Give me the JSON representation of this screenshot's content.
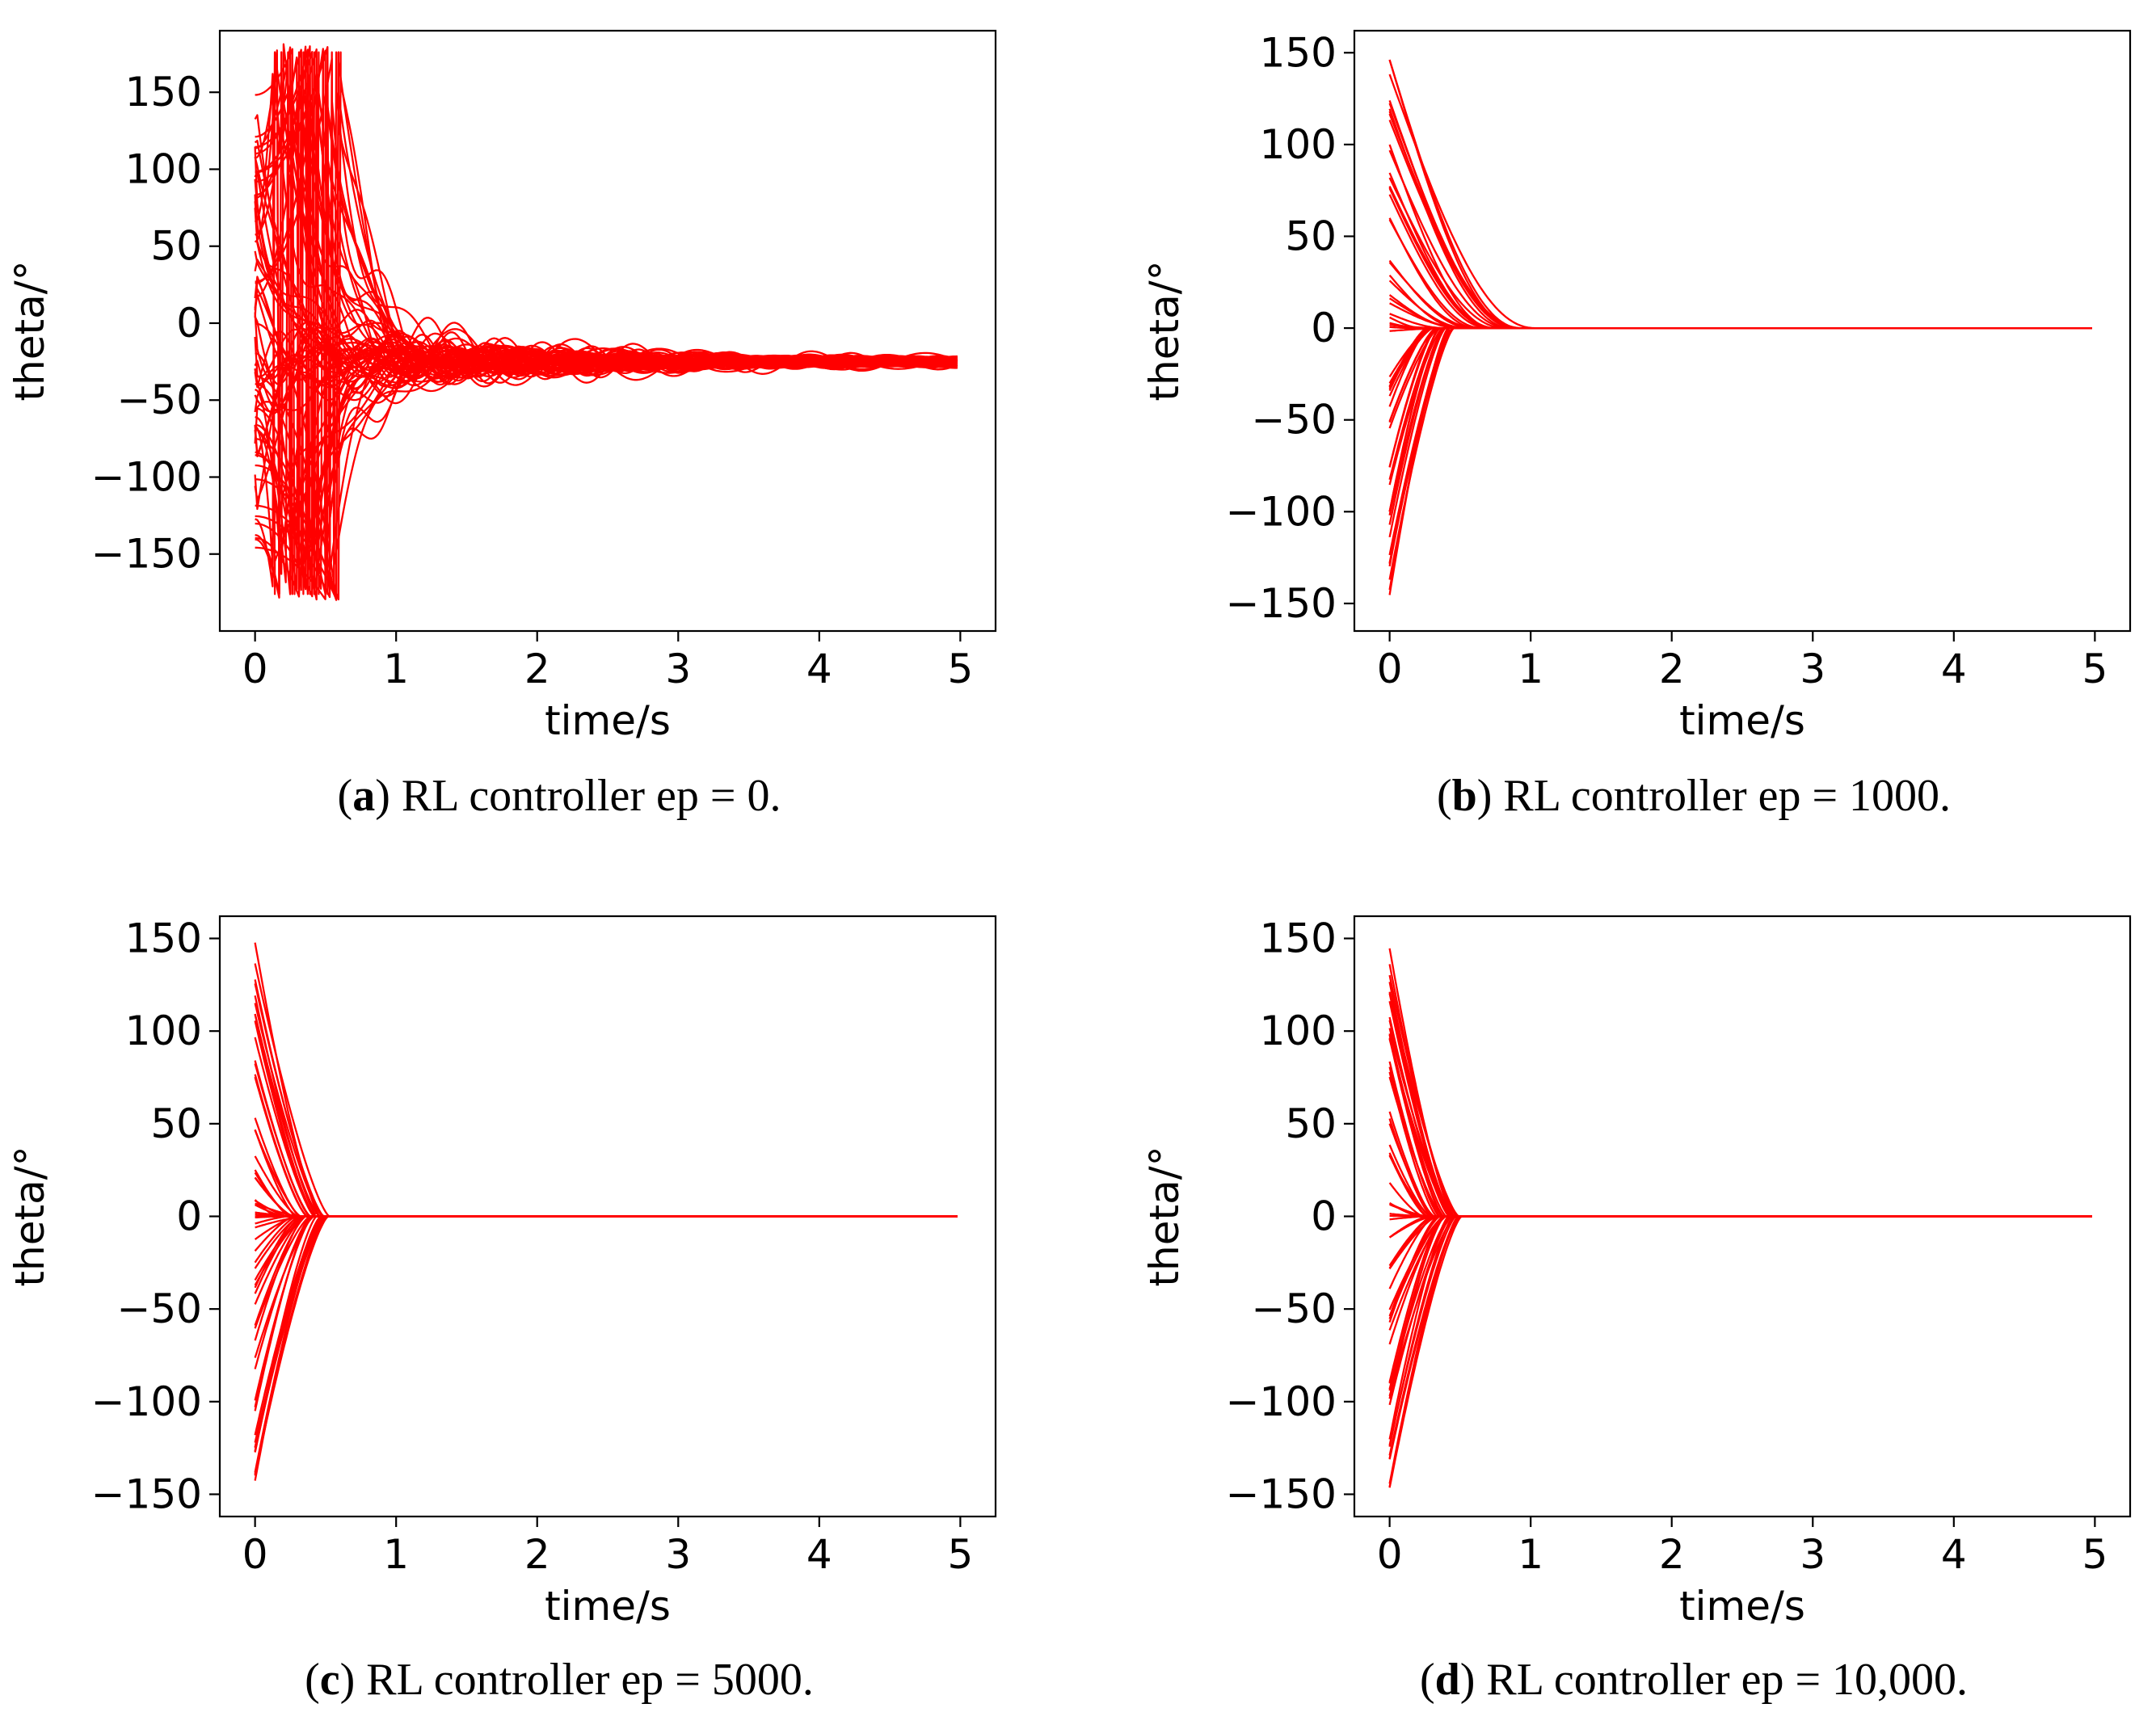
{
  "colors": {
    "series": "#ff0000",
    "axes": "#000000",
    "background": "#ffffff"
  },
  "chart_data": [
    {
      "id": "a",
      "type": "line",
      "caption_letter": "a",
      "caption_text": "RL controller ep = 0.",
      "xlabel": "time/s",
      "ylabel": "theta/°",
      "xlim": [
        -0.25,
        5.25
      ],
      "ylim": [
        -200,
        190
      ],
      "xticks": [
        0,
        1,
        2,
        3,
        4,
        5
      ],
      "yticks": [
        150,
        100,
        50,
        0,
        -50,
        -100,
        -150
      ],
      "behavior": "chaotic",
      "settle_value": -25,
      "series_count": 70
    },
    {
      "id": "b",
      "type": "line",
      "caption_letter": "b",
      "caption_text": "RL controller ep = 1000.",
      "xlabel": "time/s",
      "ylabel": "theta/°",
      "xlim": [
        -0.25,
        5.25
      ],
      "ylim": [
        -165,
        162
      ],
      "xticks": [
        0,
        1,
        2,
        3,
        4,
        5
      ],
      "yticks": [
        150,
        100,
        50,
        0,
        -50,
        -100,
        -150
      ],
      "behavior": "converge",
      "settle_value": 0,
      "settle_time_pos": 1.0,
      "settle_time_neg": 0.45,
      "series_count": 60
    },
    {
      "id": "c",
      "type": "line",
      "caption_letter": "c",
      "caption_text": "RL controller ep = 5000.",
      "xlabel": "time/s",
      "ylabel": "theta/°",
      "xlim": [
        -0.25,
        5.25
      ],
      "ylim": [
        -162,
        162
      ],
      "xticks": [
        0,
        1,
        2,
        3,
        4,
        5
      ],
      "yticks": [
        150,
        100,
        50,
        0,
        -50,
        -100,
        -150
      ],
      "behavior": "converge",
      "settle_value": 0,
      "settle_time_pos": 0.5,
      "settle_time_neg": 0.5,
      "series_count": 60
    },
    {
      "id": "d",
      "type": "line",
      "caption_letter": "d",
      "caption_text": "RL controller ep = 10,000.",
      "xlabel": "time/s",
      "ylabel": "theta/°",
      "xlim": [
        -0.25,
        5.25
      ],
      "ylim": [
        -162,
        162
      ],
      "xticks": [
        0,
        1,
        2,
        3,
        4,
        5
      ],
      "yticks": [
        150,
        100,
        50,
        0,
        -50,
        -100,
        -150
      ],
      "behavior": "converge",
      "settle_value": 0,
      "settle_time_pos": 0.5,
      "settle_time_neg": 0.5,
      "series_count": 60
    }
  ]
}
